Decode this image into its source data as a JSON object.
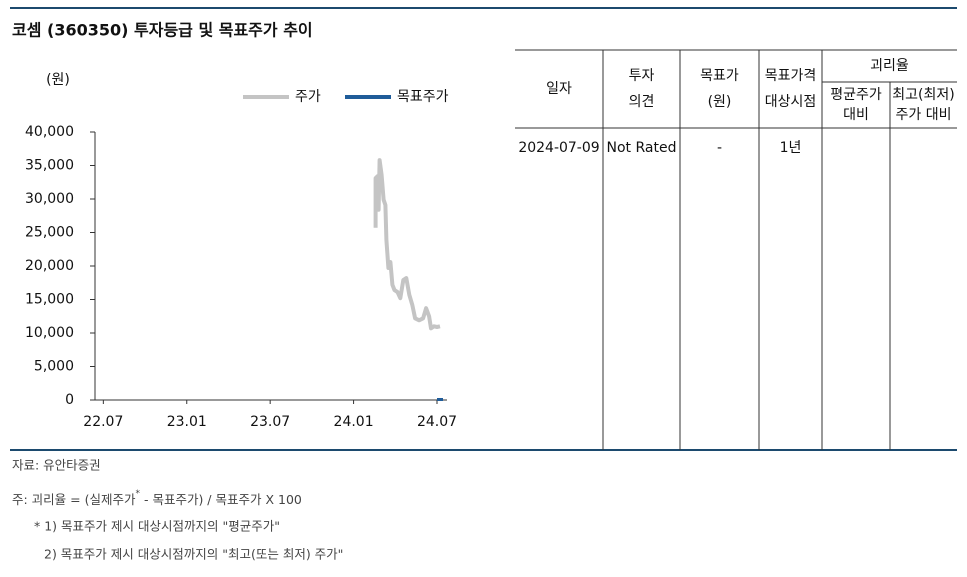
{
  "header": {
    "title": "코셈 (360350) 투자등급 및 목표주가 추이"
  },
  "chart_data": {
    "type": "line",
    "y_unit": "(원)",
    "xlim": [
      2022.45,
      2024.56
    ],
    "xticks": [
      {
        "value": 2022.5,
        "label": "22.07"
      },
      {
        "value": 2023.0,
        "label": "23.01"
      },
      {
        "value": 2023.5,
        "label": "23.07"
      },
      {
        "value": 2024.0,
        "label": "24.01"
      },
      {
        "value": 2024.5,
        "label": "24.07"
      }
    ],
    "ylim": [
      0,
      40000
    ],
    "yticks": [
      0,
      {
        "value": 5000,
        "label": "5,000"
      },
      {
        "value": 10000,
        "label": "10,000"
      },
      {
        "value": 15000,
        "label": "15,000"
      },
      {
        "value": 20000,
        "label": "20,000"
      },
      {
        "value": 25000,
        "label": "25,000"
      },
      {
        "value": 30000,
        "label": "30,000"
      },
      {
        "value": 35000,
        "label": "35,000"
      },
      {
        "value": 40000,
        "label": "40,000"
      }
    ],
    "legend": "top-right",
    "series": [
      {
        "name": "주가",
        "color": "#c4c4c4",
        "x": [
          2024.132,
          2024.132,
          2024.144,
          2024.15,
          2024.156,
          2024.168,
          2024.18,
          2024.191,
          2024.197,
          2024.209,
          2024.221,
          2024.233,
          2024.245,
          2024.263,
          2024.28,
          2024.298,
          2024.316,
          2024.334,
          2024.352,
          2024.369,
          2024.393,
          2024.417,
          2024.435,
          2024.453,
          2024.464,
          2024.482,
          2024.5,
          2024.518
        ],
        "values": [
          25700,
          33100,
          33400,
          28400,
          35800,
          33600,
          29900,
          29100,
          23900,
          19700,
          20600,
          17200,
          16400,
          16100,
          15200,
          17900,
          18200,
          15700,
          14200,
          12200,
          11900,
          12200,
          13700,
          12500,
          10700,
          11000,
          10900,
          11000
        ]
      },
      {
        "name": "목표주가",
        "color": "#1f5c99",
        "x": [
          2024.518
        ],
        "values": [
          0
        ]
      }
    ]
  },
  "table": {
    "columns": [
      [
        "일자"
      ],
      [
        "투자",
        "의견"
      ],
      [
        "목표가",
        "(원)"
      ],
      [
        "목표가격",
        "대상시점"
      ]
    ],
    "group": "괴리율",
    "subcolumns": [
      [
        "평균주가",
        "대비"
      ],
      [
        "최고(최저)",
        "주가 대비"
      ]
    ],
    "rows": [
      [
        "2024-07-09",
        "Not Rated",
        "-",
        "1년"
      ]
    ]
  },
  "notes": {
    "source": "자료: 유안타증권",
    "formula": [
      "주: 괴리율 = (실제주가",
      "*",
      " - 목표주가) / 목표주가 X 100"
    ],
    "items": [
      "* 1) 목표주가 제시 대상시점까지의 \"평균주가\"",
      "2) 목표주가 제시 대상시점까지의 \"최고(또는 최저) 주가\""
    ]
  }
}
